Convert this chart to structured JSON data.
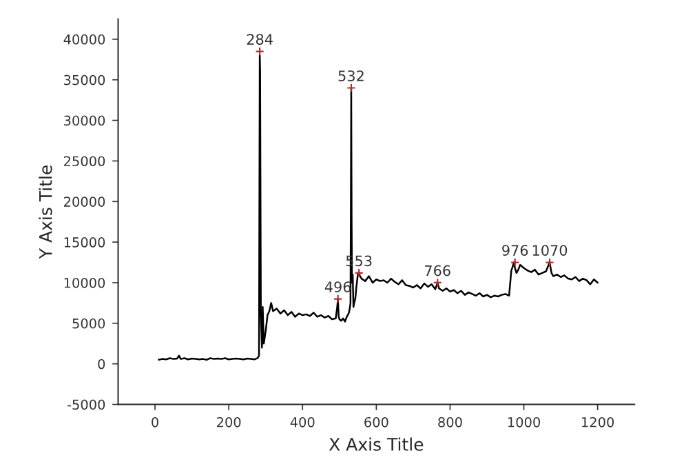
{
  "chart_data": {
    "type": "line",
    "xlabel": "X Axis Title",
    "ylabel": "Y Axis Title",
    "xlim": [
      -100,
      1300
    ],
    "ylim": [
      -5000,
      42500
    ],
    "xticks": [
      0,
      200,
      400,
      600,
      800,
      1000,
      1200
    ],
    "yticks": [
      -5000,
      0,
      5000,
      10000,
      15000,
      20000,
      25000,
      30000,
      35000,
      40000
    ],
    "grid": false,
    "legend": false,
    "marker": "none",
    "line_style": "solid",
    "series": [
      {
        "color": "#000000",
        "x": [
          10,
          20,
          30,
          40,
          50,
          60,
          65,
          70,
          80,
          90,
          100,
          110,
          120,
          130,
          140,
          150,
          160,
          170,
          180,
          190,
          200,
          210,
          220,
          230,
          240,
          250,
          260,
          270,
          278,
          282,
          284,
          285,
          287,
          290,
          292,
          295,
          300,
          305,
          310,
          315,
          320,
          330,
          340,
          350,
          360,
          370,
          380,
          390,
          400,
          410,
          420,
          430,
          440,
          450,
          460,
          470,
          480,
          490,
          494,
          496,
          498,
          500,
          505,
          510,
          515,
          520,
          525,
          528,
          530,
          531,
          532,
          533,
          534,
          536,
          538,
          540,
          543,
          546,
          550,
          553,
          556,
          560,
          570,
          580,
          590,
          600,
          610,
          620,
          630,
          640,
          650,
          660,
          670,
          680,
          690,
          700,
          710,
          720,
          730,
          740,
          750,
          760,
          766,
          770,
          780,
          790,
          800,
          810,
          820,
          830,
          840,
          850,
          860,
          870,
          880,
          890,
          900,
          910,
          920,
          930,
          940,
          950,
          960,
          966,
          970,
          973,
          976,
          980,
          985,
          990,
          1000,
          1010,
          1020,
          1030,
          1040,
          1050,
          1060,
          1070,
          1075,
          1080,
          1090,
          1100,
          1110,
          1120,
          1130,
          1140,
          1150,
          1160,
          1170,
          1180,
          1190,
          1200
        ],
        "values": [
          500,
          600,
          550,
          700,
          600,
          650,
          1000,
          600,
          700,
          550,
          650,
          600,
          550,
          600,
          500,
          700,
          600,
          650,
          600,
          700,
          550,
          600,
          650,
          600,
          550,
          650,
          600,
          550,
          700,
          1000,
          38000,
          36000,
          6000,
          2000,
          7000,
          2500,
          4000,
          6000,
          6500,
          7500,
          6500,
          6800,
          6200,
          6600,
          6000,
          6400,
          5800,
          6200,
          6000,
          6100,
          5900,
          6300,
          5800,
          6000,
          5700,
          5900,
          5500,
          5600,
          7000,
          8000,
          5800,
          5500,
          5300,
          5600,
          5200,
          5800,
          6200,
          6800,
          7500,
          19000,
          34000,
          18000,
          10000,
          11000,
          7000,
          7500,
          8000,
          9500,
          11000,
          11200,
          10800,
          10500,
          10200,
          10800,
          10000,
          10400,
          10200,
          10300,
          10000,
          10500,
          10100,
          9800,
          10300,
          9700,
          9600,
          9400,
          9700,
          9300,
          9900,
          9500,
          9800,
          9200,
          10000,
          9300,
          9000,
          9300,
          8900,
          9100,
          8700,
          9000,
          8500,
          8800,
          8600,
          8400,
          8700,
          8300,
          8500,
          8200,
          8400,
          8300,
          8500,
          8600,
          8400,
          11500,
          12000,
          12500,
          11800,
          11200,
          11600,
          12200,
          11800,
          11500,
          11300,
          11600,
          11000,
          11200,
          11400,
          12500,
          11200,
          10800,
          11000,
          10700,
          10900,
          10500,
          10400,
          10700,
          10200,
          10500,
          10300,
          9800,
          10400,
          10000
        ]
      }
    ],
    "annotations": [
      {
        "text": "284",
        "x": 284,
        "y": 38500
      },
      {
        "text": "532",
        "x": 532,
        "y": 34000
      },
      {
        "text": "496",
        "x": 496,
        "y": 8000
      },
      {
        "text": "553",
        "x": 553,
        "y": 11200
      },
      {
        "text": "766",
        "x": 766,
        "y": 10000
      },
      {
        "text": "976",
        "x": 976,
        "y": 12500
      },
      {
        "text": "1070",
        "x": 1070,
        "y": 12500
      }
    ]
  }
}
